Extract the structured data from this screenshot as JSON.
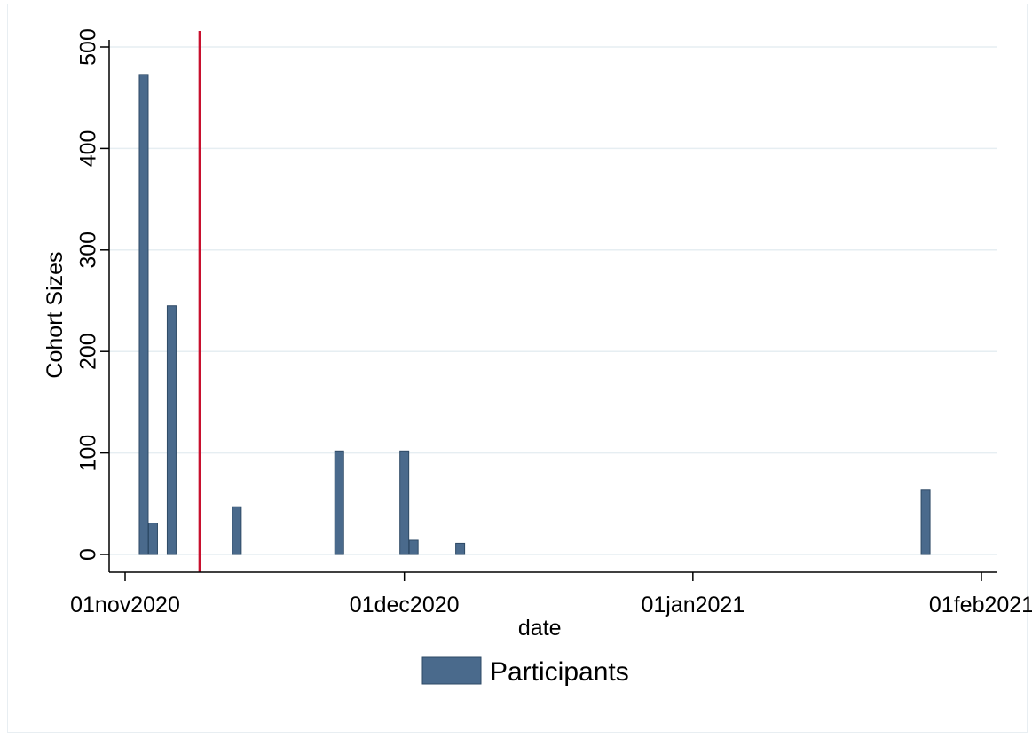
{
  "chart_data": {
    "type": "bar",
    "xlabel": "date",
    "ylabel": "Cohort Sizes",
    "ylim": [
      0,
      500
    ],
    "yticks": [
      0,
      100,
      200,
      300,
      400,
      500
    ],
    "xlim": [
      "2020-10-31",
      "2021-02-01"
    ],
    "xticks": [
      {
        "date": "2020-11-01",
        "label": "01nov2020"
      },
      {
        "date": "2020-12-01",
        "label": "01dec2020"
      },
      {
        "date": "2021-01-01",
        "label": "01jan2021"
      },
      {
        "date": "2021-02-01",
        "label": "01feb2021"
      }
    ],
    "series": [
      {
        "name": "Participants",
        "color": "#4a6a8c",
        "points": [
          {
            "date": "2020-11-03",
            "value": 473
          },
          {
            "date": "2020-11-04",
            "value": 31
          },
          {
            "date": "2020-11-06",
            "value": 245
          },
          {
            "date": "2020-11-13",
            "value": 47
          },
          {
            "date": "2020-11-24",
            "value": 102
          },
          {
            "date": "2020-12-01",
            "value": 102
          },
          {
            "date": "2020-12-02",
            "value": 14
          },
          {
            "date": "2020-12-07",
            "value": 11
          },
          {
            "date": "2021-01-26",
            "value": 64
          }
        ]
      }
    ],
    "reference_line": {
      "date": "2020-11-09",
      "color": "#c8102e"
    },
    "grid": true,
    "grid_color": "#e6eef2",
    "legend": {
      "position": "bottom-center",
      "entries": [
        "Participants"
      ]
    }
  }
}
